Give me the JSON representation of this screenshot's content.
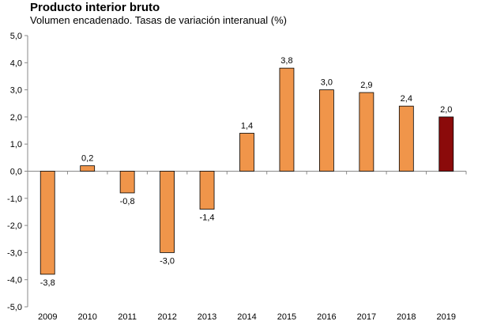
{
  "chart_data": {
    "type": "bar",
    "title": "Producto interior bruto",
    "subtitle": "Volumen encadenado. Tasas de variación interanual (%)",
    "xlabel": "",
    "ylabel": "",
    "categories": [
      "2009",
      "2010",
      "2011",
      "2012",
      "2013",
      "2014",
      "2015",
      "2016",
      "2017",
      "2018",
      "2019"
    ],
    "values": [
      -3.8,
      0.2,
      -0.8,
      -3.0,
      -1.4,
      1.4,
      3.8,
      3.0,
      2.9,
      2.4,
      2.0
    ],
    "data_labels": [
      "-3,8",
      "0,2",
      "-0,8",
      "-3,0",
      "-1,4",
      "1,4",
      "3,8",
      "3,0",
      "2,9",
      "2,4",
      "2,0"
    ],
    "ylim": [
      -5,
      5
    ],
    "yticks": [
      5,
      4,
      3,
      2,
      1,
      0,
      -1,
      -2,
      -3,
      -4,
      -5
    ],
    "ytick_labels": [
      "5,0",
      "4,0",
      "3,0",
      "2,0",
      "1,0",
      "0,0",
      "-1,0",
      "-2,0",
      "-3,0",
      "-4,0",
      "-5,0"
    ],
    "grid": false,
    "colors": {
      "bar": "#f0954a",
      "highlight": "#8b0a0a",
      "edge": "#000000"
    },
    "highlight_index": 10
  }
}
